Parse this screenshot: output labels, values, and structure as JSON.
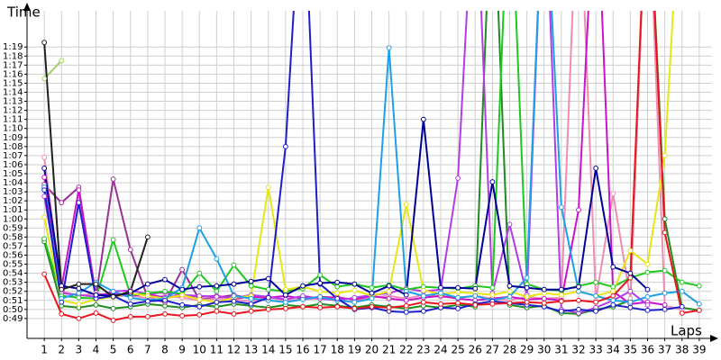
{
  "chart_data": {
    "type": "line",
    "y_label": "Time",
    "x_label": "Laps",
    "grid": true,
    "marker": "hollow-circle",
    "xlim": [
      0,
      40
    ],
    "ylim": [
      46.8,
      83
    ],
    "xticks": [
      1,
      2,
      3,
      4,
      5,
      6,
      7,
      8,
      9,
      10,
      11,
      12,
      13,
      14,
      15,
      16,
      17,
      18,
      19,
      20,
      21,
      22,
      23,
      24,
      25,
      26,
      27,
      28,
      29,
      30,
      31,
      32,
      33,
      34,
      35,
      36,
      37,
      38,
      39
    ],
    "yticks": [
      {
        "value": 49,
        "label": "0:49"
      },
      {
        "value": 50,
        "label": "0:50"
      },
      {
        "value": 51,
        "label": "0:51"
      },
      {
        "value": 52,
        "label": "0:52"
      },
      {
        "value": 53,
        "label": "0:53"
      },
      {
        "value": 54,
        "label": "0:54"
      },
      {
        "value": 55,
        "label": "0:55"
      },
      {
        "value": 56,
        "label": "0:56"
      },
      {
        "value": 57,
        "label": "0:57"
      },
      {
        "value": 58,
        "label": "0:58"
      },
      {
        "value": 59,
        "label": "0:59"
      },
      {
        "value": 60,
        "label": "1:00"
      },
      {
        "value": 61,
        "label": "1:01"
      },
      {
        "value": 62,
        "label": "1:02"
      },
      {
        "value": 63,
        "label": "1:03"
      },
      {
        "value": 64,
        "label": "1:04"
      },
      {
        "value": 65,
        "label": "1:05"
      },
      {
        "value": 66,
        "label": "1:06"
      },
      {
        "value": 67,
        "label": "1:07"
      },
      {
        "value": 68,
        "label": "1:08"
      },
      {
        "value": 69,
        "label": "1:09"
      },
      {
        "value": 70,
        "label": "1:10"
      },
      {
        "value": 71,
        "label": "1:11"
      },
      {
        "value": 72,
        "label": "1:12"
      },
      {
        "value": 73,
        "label": "1:13"
      },
      {
        "value": 74,
        "label": "1:14"
      },
      {
        "value": 75,
        "label": "1:15"
      },
      {
        "value": 76,
        "label": "1:16"
      },
      {
        "value": 77,
        "label": "1:17"
      },
      {
        "value": 78,
        "label": "1:18"
      },
      {
        "value": 79,
        "label": "1:19"
      }
    ],
    "x": [
      1,
      2,
      3,
      4,
      5,
      6,
      7,
      8,
      9,
      10,
      11,
      12,
      13,
      14,
      15,
      16,
      17,
      18,
      19,
      20,
      21,
      22,
      23,
      24,
      25,
      26,
      27,
      28,
      29,
      30,
      31,
      32,
      33,
      34,
      35,
      36,
      37,
      38,
      39
    ],
    "series": [
      {
        "color": "#1e8c1e",
        "values": [
          57.5,
          50.4,
          50.2,
          50.5,
          50.1,
          50.3,
          50.6,
          50.4,
          50.2,
          50.5,
          50.3,
          50.6,
          50.4,
          50.2,
          50.5,
          50.3,
          50.6,
          50.4,
          50.2,
          50.5,
          50.3,
          50.1,
          50.4,
          50.2,
          50.5,
          50.3,
          100,
          50.5,
          50.2,
          50.4,
          49.6,
          49.5,
          50.0,
          50.3,
          51.0,
          100,
          60.0,
          50.2,
          49.9
        ]
      },
      {
        "color": "#a0d264",
        "values": [
          75.5,
          77.5,
          null,
          null,
          null,
          null,
          null,
          null,
          null,
          null,
          null,
          null,
          null,
          null,
          null,
          null,
          null,
          null,
          null,
          null,
          null,
          null,
          null,
          null,
          null,
          null,
          null,
          null,
          null,
          null,
          null,
          null,
          null,
          null,
          null,
          null,
          null,
          null,
          null
        ]
      },
      {
        "color": "#963296",
        "values": [
          63.8,
          61.8,
          63.5,
          51.4,
          64.4,
          56.6,
          51.3,
          50.8,
          54.4,
          51.1,
          51.3,
          51.6,
          51.2,
          null,
          null,
          null,
          null,
          null,
          null,
          null,
          null,
          null,
          null,
          null,
          null,
          null,
          null,
          null,
          null,
          null,
          null,
          null,
          null,
          null,
          null,
          null,
          null,
          null,
          null
        ]
      },
      {
        "color": "#f08cb4",
        "values": [
          66.8,
          52.0,
          51.5,
          51.8,
          51.4,
          51.6,
          51.2,
          51.5,
          51.3,
          51.0,
          51.2,
          51.1,
          50.9,
          51.3,
          51.0,
          51.1,
          51.2,
          51.4,
          51.0,
          51.3,
          51.5,
          51.2,
          51.6,
          51.4,
          51.3,
          51.5,
          51.2,
          51.0,
          51.4,
          51.2,
          51.3,
          100,
          51.0,
          62.8,
          51.2,
          100,
          50.4,
          50.0,
          null
        ]
      },
      {
        "color": "#c814c8",
        "values": [
          64.6,
          52.4,
          63.2,
          51.6,
          51.8,
          51.5,
          51.7,
          51.3,
          51.6,
          51.4,
          51.5,
          51.2,
          51.4,
          51.3,
          51.5,
          51.2,
          51.4,
          51.3,
          51.1,
          51.5,
          51.2,
          51.0,
          51.3,
          51.5,
          51.2,
          51.0,
          51.2,
          51.4,
          51.1,
          51.2,
          51.0,
          61.0,
          100,
          52.0,
          50.6,
          50.8,
          50.5,
          null,
          null
        ]
      },
      {
        "color": "#b43ce6",
        "values": [
          62.5,
          51.8,
          51.6,
          51.4,
          52.0,
          52.1,
          51.7,
          51.9,
          51.6,
          51.5,
          51.4,
          51.3,
          51.6,
          51.4,
          51.1,
          51.5,
          51.2,
          51.0,
          51.3,
          51.6,
          51.8,
          52.3,
          52.0,
          52.2,
          64.5,
          100,
          51.8,
          59.4,
          51.6,
          100,
          50.0,
          49.6,
          50.2,
          51.0,
          52.0,
          50.5,
          null,
          null,
          null
        ]
      },
      {
        "color": "#1ec81e",
        "values": [
          57.8,
          51.5,
          51.3,
          51.2,
          57.7,
          51.6,
          51.8,
          52.0,
          51.7,
          54.0,
          52.0,
          54.9,
          52.6,
          52.2,
          52.0,
          52.3,
          53.8,
          52.5,
          52.8,
          52.4,
          52.7,
          52.2,
          52.5,
          52.4,
          52.3,
          52.6,
          52.4,
          100,
          52.8,
          52.2,
          52.1,
          52.6,
          53.0,
          52.5,
          53.5,
          54.1,
          54.3,
          53.0,
          52.6
        ]
      },
      {
        "color": "#e6e614",
        "values": [
          60.2,
          51.0,
          50.6,
          51.1,
          51.4,
          51.8,
          51.5,
          51.2,
          51.6,
          51.1,
          50.8,
          51.3,
          51.5,
          63.5,
          52.2,
          52.5,
          52.0,
          51.8,
          52.1,
          51.5,
          52.0,
          61.6,
          52.1,
          51.7,
          51.9,
          51.8,
          51.6,
          52.0,
          51.4,
          51.8,
          51.6,
          52.0,
          51.5,
          52.0,
          56.5,
          55.0,
          67.0,
          100,
          null
        ]
      },
      {
        "color": "#1ea0e6",
        "values": [
          63.5,
          51.2,
          51.8,
          53.0,
          52.0,
          51.3,
          51.0,
          51.2,
          52.4,
          59.0,
          55.6,
          51.5,
          51.2,
          51.0,
          50.8,
          51.1,
          51.4,
          51.0,
          50.8,
          51.2,
          78.9,
          52.0,
          51.5,
          51.8,
          51.3,
          51.5,
          51.0,
          51.4,
          53.5,
          100,
          61.3,
          52.0,
          51.5,
          51.0,
          50.8,
          51.4,
          51.8,
          52.0,
          50.6
        ]
      },
      {
        "color": "#1e1ec8",
        "values": [
          63.2,
          50.8,
          61.8,
          51.2,
          51.5,
          50.6,
          50.9,
          51.0,
          50.5,
          50.3,
          50.8,
          50.9,
          50.6,
          51.3,
          68.0,
          100,
          52.8,
          51.2,
          50.0,
          50.2,
          49.8,
          49.7,
          49.8,
          50.2,
          50.1,
          50.6,
          50.9,
          50.7,
          50.5,
          50.3,
          49.8,
          50.0,
          49.8,
          50.5,
          50.2,
          49.9,
          50.0,
          50.3,
          null
        ]
      },
      {
        "color": "#000099",
        "values": [
          65.6,
          52.6,
          52.3,
          51.6,
          51.5,
          51.8,
          52.8,
          53.3,
          52.2,
          52.5,
          52.6,
          52.8,
          53.1,
          53.4,
          51.6,
          52.6,
          52.9,
          53.0,
          52.8,
          51.8,
          52.6,
          51.6,
          71.0,
          52.4,
          52.4,
          52.3,
          64.1,
          52.6,
          52.4,
          52.2,
          52.2,
          52.5,
          65.6,
          54.7,
          54.0,
          52.2,
          null,
          null,
          null
        ]
      },
      {
        "color": "#202020",
        "values": [
          79.5,
          52.2,
          52.8,
          52.8,
          51.4,
          52.0,
          58.0,
          null,
          null,
          null,
          null,
          null,
          null,
          null,
          null,
          null,
          null,
          null,
          null,
          null,
          null,
          null,
          null,
          null,
          null,
          null,
          null,
          null,
          null,
          null,
          null,
          null,
          null,
          null,
          null,
          null,
          null,
          null,
          null
        ]
      },
      {
        "color": "#e8141e",
        "values": [
          53.9,
          49.5,
          49.0,
          49.6,
          48.8,
          49.2,
          49.2,
          49.5,
          49.3,
          49.4,
          49.8,
          49.5,
          49.8,
          50.0,
          50.1,
          50.3,
          50.2,
          50.3,
          50.1,
          50.3,
          50.2,
          50.4,
          50.8,
          50.6,
          50.7,
          50.5,
          50.6,
          50.7,
          50.8,
          50.7,
          50.9,
          51.0,
          50.8,
          51.5,
          53.5,
          100,
          58.5,
          49.6,
          49.9
        ]
      }
    ]
  }
}
